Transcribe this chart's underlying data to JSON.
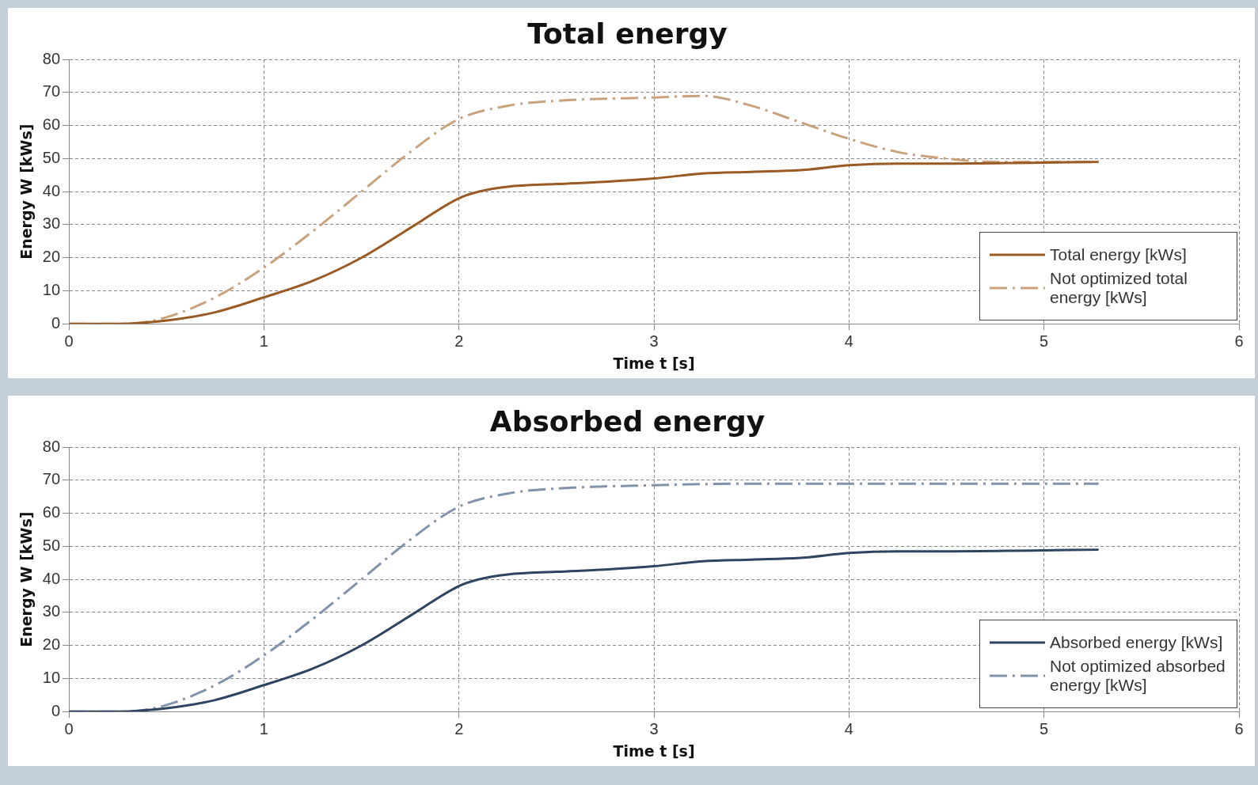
{
  "chart_data": [
    {
      "type": "line",
      "title": "Total energy",
      "xlabel": "Time t [s]",
      "ylabel": "Energy W [kWs]",
      "xlim": [
        0,
        6
      ],
      "xticks": [
        0,
        1,
        2,
        3,
        4,
        5,
        6
      ],
      "ylim": [
        0,
        80
      ],
      "yticks": [
        0,
        10,
        20,
        30,
        40,
        50,
        60,
        70,
        80
      ],
      "grid": true,
      "legend": "bottom right",
      "marker": "none",
      "series": [
        {
          "name": "Total energy [kWs]",
          "color": "#9a5a24",
          "line_style": "solid",
          "x": [
            0,
            0.25,
            0.5,
            0.75,
            1,
            1.25,
            1.5,
            1.75,
            2,
            2.1,
            2.25,
            2.5,
            2.75,
            3,
            3.25,
            3.5,
            3.75,
            4,
            4.25,
            4.5,
            5,
            5.28
          ],
          "values": [
            0,
            0,
            1,
            3.5,
            8,
            13,
            20,
            29,
            38,
            40,
            41.5,
            42.3,
            43,
            44,
            45.5,
            46,
            46.5,
            48,
            48.5,
            48.5,
            48.8,
            49
          ]
        },
        {
          "name": "Not optimized total energy [kWs]",
          "color": "#c9a27c",
          "line_style": "dashed",
          "x": [
            0,
            0.3,
            0.5,
            0.75,
            1,
            1.25,
            1.5,
            1.75,
            2,
            2.25,
            2.5,
            3,
            3.25,
            3.5,
            3.75,
            4,
            4.25,
            4.5,
            4.75,
            5,
            5.28
          ],
          "values": [
            0,
            0,
            2,
            8,
            17,
            28,
            40,
            52,
            62,
            66,
            67.5,
            68.5,
            69,
            66,
            61,
            56,
            52,
            50,
            49,
            49,
            49
          ]
        }
      ]
    },
    {
      "type": "line",
      "title": "Absorbed energy",
      "xlabel": "Time t [s]",
      "ylabel": "Energy W [kWs]",
      "xlim": [
        0,
        6
      ],
      "xticks": [
        0,
        1,
        2,
        3,
        4,
        5,
        6
      ],
      "ylim": [
        0,
        80
      ],
      "yticks": [
        0,
        10,
        20,
        30,
        40,
        50,
        60,
        70,
        80
      ],
      "grid": true,
      "legend": "bottom right",
      "marker": "none",
      "series": [
        {
          "name": "Absorbed energy [kWs]",
          "color": "#2e4562",
          "line_style": "solid",
          "x": [
            0,
            0.25,
            0.5,
            0.75,
            1,
            1.25,
            1.5,
            1.75,
            2,
            2.1,
            2.25,
            2.5,
            2.75,
            3,
            3.25,
            3.5,
            3.75,
            4,
            4.25,
            4.5,
            5,
            5.28
          ],
          "values": [
            0,
            0,
            1,
            3.5,
            8,
            13,
            20,
            29,
            38,
            40,
            41.5,
            42.3,
            43,
            44,
            45.5,
            46,
            46.5,
            48,
            48.5,
            48.5,
            48.8,
            49
          ]
        },
        {
          "name": "Not optimized absorbed energy [kWs]",
          "color": "#8193aa",
          "line_style": "dashed",
          "x": [
            0,
            0.3,
            0.5,
            0.75,
            1,
            1.25,
            1.5,
            1.75,
            2,
            2.25,
            2.5,
            3,
            3.5,
            4,
            4.5,
            5,
            5.28
          ],
          "values": [
            0,
            0,
            2,
            8,
            17,
            28,
            40,
            52,
            62,
            66,
            67.5,
            68.5,
            69,
            69,
            69,
            69,
            69
          ]
        }
      ]
    }
  ]
}
